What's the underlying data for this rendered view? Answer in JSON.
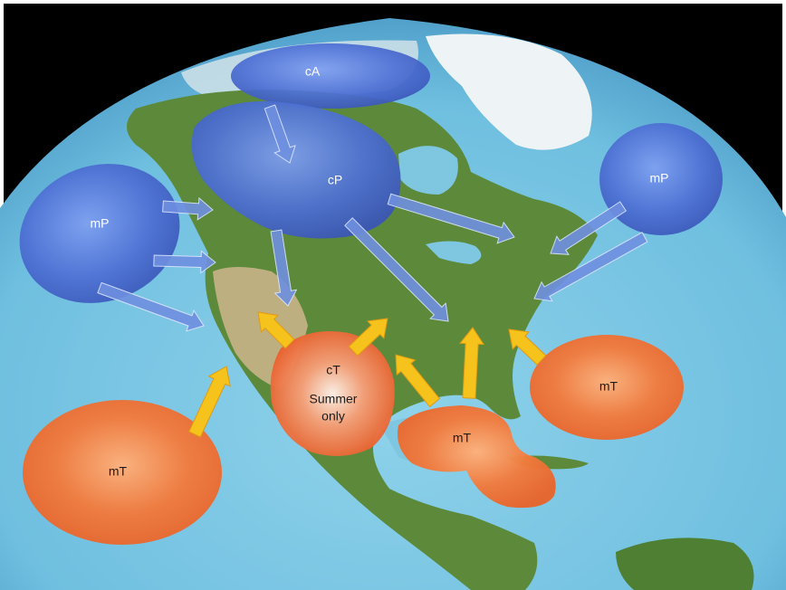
{
  "colors": {
    "space": "#000000",
    "ocean": "#7fc6e0",
    "ocean_deep": "#4fa3c8",
    "land": "#5c8a3a",
    "land_dry": "#c9b38a",
    "ice": "#eef3f5",
    "cold_mass": "#4a6fd1",
    "warm_mass": "#f07a3a",
    "cold_arrow": "#6f8fe0",
    "warm_arrow": "#f6c21c"
  },
  "air_masses": [
    {
      "id": "cA-north",
      "label": "cA",
      "kind": "cold"
    },
    {
      "id": "cP-canada",
      "label": "cP",
      "kind": "cold"
    },
    {
      "id": "mP-pacific",
      "label": "mP",
      "kind": "cold"
    },
    {
      "id": "mP-atlantic",
      "label": "mP",
      "kind": "cold"
    },
    {
      "id": "cT-mexico",
      "label": "cT",
      "sublabel_line1": "Summer",
      "sublabel_line2": "only",
      "kind": "warm"
    },
    {
      "id": "mT-pacific",
      "label": "mT",
      "kind": "warm"
    },
    {
      "id": "mT-gulf",
      "label": "mT",
      "kind": "warm"
    },
    {
      "id": "mT-atlantic",
      "label": "mT",
      "kind": "warm"
    }
  ]
}
